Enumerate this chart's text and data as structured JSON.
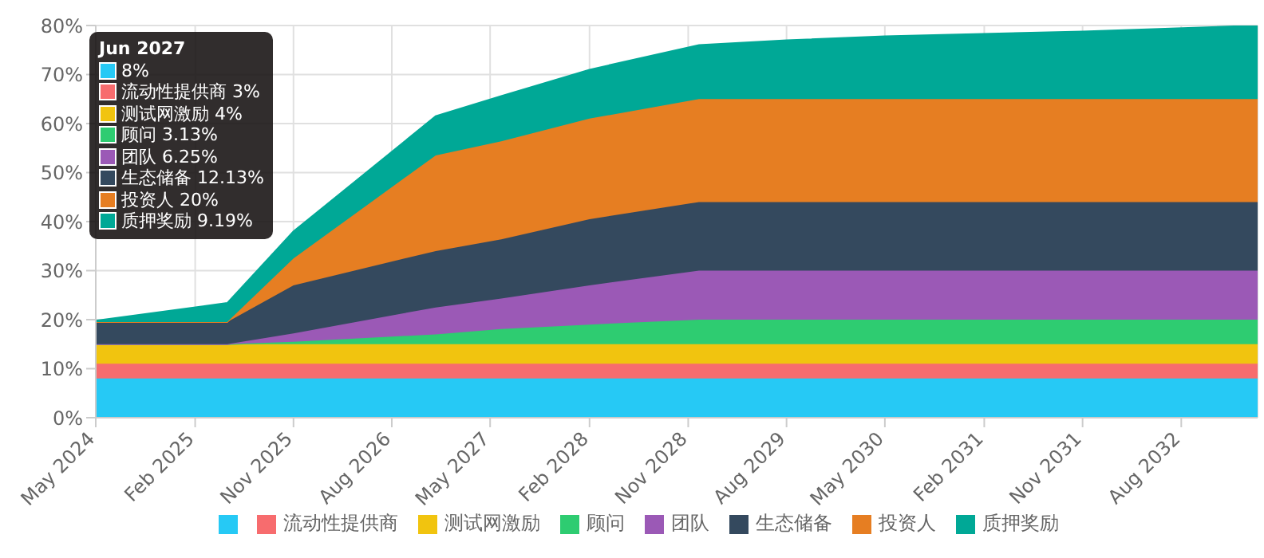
{
  "chart_data": {
    "type": "area",
    "stacked": true,
    "x": [
      "2024-05",
      "2025-05",
      "2025-11",
      "2026-12",
      "2027-06",
      "2028-02",
      "2028-12",
      "2029-08",
      "2030-05",
      "2031-11",
      "2033-03"
    ],
    "series": [
      {
        "color": "#26c9f5",
        "values": [
          8,
          8,
          8,
          8,
          8,
          8,
          8,
          8,
          8,
          8,
          8
        ]
      },
      {
        "name": "流动性提供商",
        "color": "#f76c6e",
        "values": [
          3,
          3,
          3,
          3,
          3,
          3,
          3,
          3,
          3,
          3,
          3
        ]
      },
      {
        "name": "测试网激励",
        "color": "#f1c40f",
        "values": [
          4,
          4,
          4,
          4,
          4,
          4,
          4,
          4,
          4,
          4,
          4
        ]
      },
      {
        "name": "顾问",
        "color": "#2ecc71",
        "values": [
          0,
          0,
          0.5,
          2,
          3.1,
          4,
          5,
          5,
          5,
          5,
          5
        ]
      },
      {
        "name": "团队",
        "color": "#9b59b6",
        "values": [
          0,
          0,
          1.7,
          5.5,
          6.2,
          8,
          10,
          10,
          10,
          10,
          10
        ]
      },
      {
        "name": "生态储备",
        "color": "#34495e",
        "values": [
          4.5,
          4.5,
          9.8,
          11.5,
          12.1,
          13.5,
          14,
          14,
          14,
          14,
          14
        ]
      },
      {
        "name": "投资人",
        "color": "#e67e22",
        "values": [
          0,
          0,
          5.5,
          19.5,
          20,
          20.5,
          21,
          21,
          21,
          21,
          21
        ]
      },
      {
        "name": "质押奖励",
        "color": "#00a896",
        "values": [
          0.3,
          3.9,
          5.5,
          8,
          9.2,
          10,
          11,
          12,
          12.8,
          13.8,
          15
        ]
      }
    ],
    "xlim": [
      "2024-05",
      "2033-03"
    ],
    "xticks": [
      {
        "value": "2024-05",
        "label": "May 2024"
      },
      {
        "value": "2025-02",
        "label": "Feb 2025"
      },
      {
        "value": "2025-11",
        "label": "Nov 2025"
      },
      {
        "value": "2026-08",
        "label": "Aug 2026"
      },
      {
        "value": "2027-05",
        "label": "May 2027"
      },
      {
        "value": "2028-02",
        "label": "Feb 2028"
      },
      {
        "value": "2028-11",
        "label": "Nov 2028"
      },
      {
        "value": "2029-08",
        "label": "Aug 2029"
      },
      {
        "value": "2030-05",
        "label": "May 2030"
      },
      {
        "value": "2031-02",
        "label": "Feb 2031"
      },
      {
        "value": "2031-11",
        "label": "Nov 2031"
      },
      {
        "value": "2032-08",
        "label": "Aug 2032"
      }
    ],
    "ylim": [
      0,
      80
    ],
    "yticks": [
      {
        "value": 0,
        "label": "0%"
      },
      {
        "value": 10,
        "label": "10%"
      },
      {
        "value": 20,
        "label": "20%"
      },
      {
        "value": 30,
        "label": "30%"
      },
      {
        "value": 40,
        "label": "40%"
      },
      {
        "value": 50,
        "label": "50%"
      },
      {
        "value": 60,
        "label": "60%"
      },
      {
        "value": 70,
        "label": "70%"
      },
      {
        "value": 80,
        "label": "80%"
      }
    ],
    "grid": true,
    "legend": "bottom",
    "annotations": [
      "Jun 2027",
      "8%",
      "流动性提供商 3%",
      "测试网激励 4%",
      "顾问 3.13%",
      "团队 6.25%",
      "生态储备 12.13%",
      "投资人 20%",
      "质押奖励 9.19%"
    ]
  }
}
